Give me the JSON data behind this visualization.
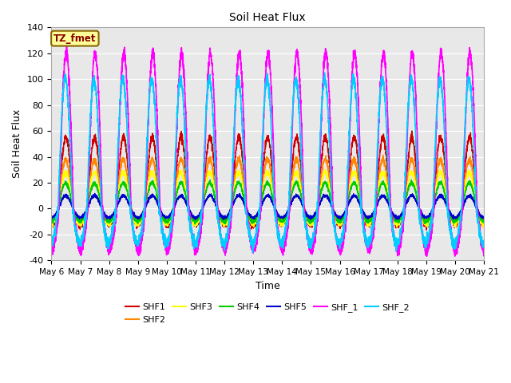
{
  "title": "Soil Heat Flux",
  "xlabel": "Time",
  "ylabel": "Soil Heat Flux",
  "ylim": [
    -40,
    140
  ],
  "yticks": [
    -40,
    -20,
    0,
    20,
    40,
    60,
    80,
    100,
    120,
    140
  ],
  "xtick_labels": [
    "May 6",
    "May 7",
    "May 8",
    "May 9",
    "May 10",
    "May 11",
    "May 12",
    "May 13",
    "May 14",
    "May 15",
    "May 16",
    "May 17",
    "May 18",
    "May 19",
    "May 20",
    "May 21"
  ],
  "series_names": [
    "SHF1",
    "SHF2",
    "SHF3",
    "SHF4",
    "SHF5",
    "SHF_1",
    "SHF_2"
  ],
  "series_colors": [
    "#cc0000",
    "#ff8800",
    "#ffff00",
    "#00cc00",
    "#0000cc",
    "#ff00ff",
    "#00ccff"
  ],
  "series_linewidths": [
    1.0,
    1.0,
    1.0,
    1.0,
    1.0,
    1.2,
    1.2
  ],
  "annotation_text": "TZ_fmet",
  "annotation_color": "#880000",
  "annotation_bg": "#ffff99",
  "annotation_border": "#886600",
  "plot_bg_color": "#e8e8e8",
  "n_days": 15,
  "points_per_day": 288
}
